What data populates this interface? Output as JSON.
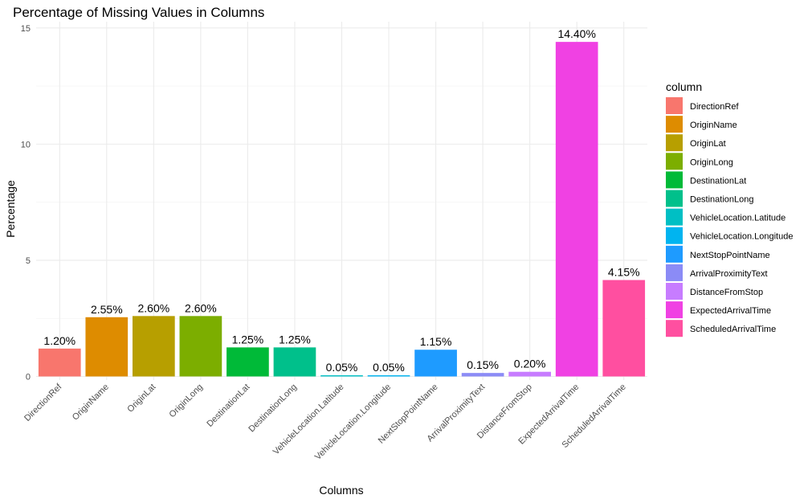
{
  "chart_data": {
    "type": "bar",
    "title": "Percentage of Missing Values in Columns",
    "xlabel": "Columns",
    "ylabel": "Percentage",
    "ylim": [
      0,
      15
    ],
    "yticks": [
      0,
      5,
      10,
      15
    ],
    "grid": true,
    "legend_title": "column",
    "legend_position": "right",
    "categories": [
      "DirectionRef",
      "OriginName",
      "OriginLat",
      "OriginLong",
      "DestinationLat",
      "DestinationLong",
      "VehicleLocation.Latitude",
      "VehicleLocation.Longitude",
      "NextStopPointName",
      "ArrivalProximityText",
      "DistanceFromStop",
      "ExpectedArrivalTime",
      "ScheduledArrivalTime"
    ],
    "values": [
      1.2,
      2.55,
      2.6,
      2.6,
      1.25,
      1.25,
      0.05,
      0.05,
      1.15,
      0.15,
      0.2,
      14.4,
      4.15
    ],
    "labels": [
      "1.20%",
      "2.55%",
      "2.60%",
      "2.60%",
      "1.25%",
      "1.25%",
      "0.05%",
      "0.05%",
      "1.15%",
      "0.15%",
      "0.20%",
      "14.40%",
      "4.15%"
    ],
    "colors": [
      "#F8766D",
      "#DE8C00",
      "#B79F00",
      "#7CAE00",
      "#00BA38",
      "#00C08B",
      "#00BFC4",
      "#00B4F0",
      "#1E9BFF",
      "#8B8BF6",
      "#C77CFF",
      "#F041E3",
      "#FF4FA0"
    ]
  }
}
